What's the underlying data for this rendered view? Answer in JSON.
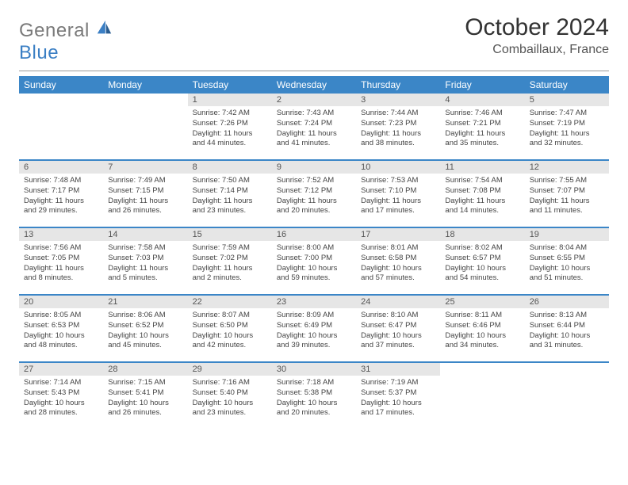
{
  "brand": {
    "part1": "General",
    "part2": "Blue"
  },
  "title": "October 2024",
  "subtitle": "Combaillaux, France",
  "colors": {
    "header_bg": "#3b86c7",
    "header_text": "#ffffff",
    "daynum_bg": "#e6e6e6",
    "row_border": "#3b86c7",
    "logo_gray": "#7a7a7a",
    "logo_blue": "#3b7fc4"
  },
  "dayHeaders": [
    "Sunday",
    "Monday",
    "Tuesday",
    "Wednesday",
    "Thursday",
    "Friday",
    "Saturday"
  ],
  "calendar": {
    "type": "table",
    "columns": 7,
    "startWeekday": 2,
    "days": [
      {
        "n": 1,
        "sr": "7:42 AM",
        "ss": "7:26 PM",
        "dl": "11 hours and 44 minutes."
      },
      {
        "n": 2,
        "sr": "7:43 AM",
        "ss": "7:24 PM",
        "dl": "11 hours and 41 minutes."
      },
      {
        "n": 3,
        "sr": "7:44 AM",
        "ss": "7:23 PM",
        "dl": "11 hours and 38 minutes."
      },
      {
        "n": 4,
        "sr": "7:46 AM",
        "ss": "7:21 PM",
        "dl": "11 hours and 35 minutes."
      },
      {
        "n": 5,
        "sr": "7:47 AM",
        "ss": "7:19 PM",
        "dl": "11 hours and 32 minutes."
      },
      {
        "n": 6,
        "sr": "7:48 AM",
        "ss": "7:17 PM",
        "dl": "11 hours and 29 minutes."
      },
      {
        "n": 7,
        "sr": "7:49 AM",
        "ss": "7:15 PM",
        "dl": "11 hours and 26 minutes."
      },
      {
        "n": 8,
        "sr": "7:50 AM",
        "ss": "7:14 PM",
        "dl": "11 hours and 23 minutes."
      },
      {
        "n": 9,
        "sr": "7:52 AM",
        "ss": "7:12 PM",
        "dl": "11 hours and 20 minutes."
      },
      {
        "n": 10,
        "sr": "7:53 AM",
        "ss": "7:10 PM",
        "dl": "11 hours and 17 minutes."
      },
      {
        "n": 11,
        "sr": "7:54 AM",
        "ss": "7:08 PM",
        "dl": "11 hours and 14 minutes."
      },
      {
        "n": 12,
        "sr": "7:55 AM",
        "ss": "7:07 PM",
        "dl": "11 hours and 11 minutes."
      },
      {
        "n": 13,
        "sr": "7:56 AM",
        "ss": "7:05 PM",
        "dl": "11 hours and 8 minutes."
      },
      {
        "n": 14,
        "sr": "7:58 AM",
        "ss": "7:03 PM",
        "dl": "11 hours and 5 minutes."
      },
      {
        "n": 15,
        "sr": "7:59 AM",
        "ss": "7:02 PM",
        "dl": "11 hours and 2 minutes."
      },
      {
        "n": 16,
        "sr": "8:00 AM",
        "ss": "7:00 PM",
        "dl": "10 hours and 59 minutes."
      },
      {
        "n": 17,
        "sr": "8:01 AM",
        "ss": "6:58 PM",
        "dl": "10 hours and 57 minutes."
      },
      {
        "n": 18,
        "sr": "8:02 AM",
        "ss": "6:57 PM",
        "dl": "10 hours and 54 minutes."
      },
      {
        "n": 19,
        "sr": "8:04 AM",
        "ss": "6:55 PM",
        "dl": "10 hours and 51 minutes."
      },
      {
        "n": 20,
        "sr": "8:05 AM",
        "ss": "6:53 PM",
        "dl": "10 hours and 48 minutes."
      },
      {
        "n": 21,
        "sr": "8:06 AM",
        "ss": "6:52 PM",
        "dl": "10 hours and 45 minutes."
      },
      {
        "n": 22,
        "sr": "8:07 AM",
        "ss": "6:50 PM",
        "dl": "10 hours and 42 minutes."
      },
      {
        "n": 23,
        "sr": "8:09 AM",
        "ss": "6:49 PM",
        "dl": "10 hours and 39 minutes."
      },
      {
        "n": 24,
        "sr": "8:10 AM",
        "ss": "6:47 PM",
        "dl": "10 hours and 37 minutes."
      },
      {
        "n": 25,
        "sr": "8:11 AM",
        "ss": "6:46 PM",
        "dl": "10 hours and 34 minutes."
      },
      {
        "n": 26,
        "sr": "8:13 AM",
        "ss": "6:44 PM",
        "dl": "10 hours and 31 minutes."
      },
      {
        "n": 27,
        "sr": "7:14 AM",
        "ss": "5:43 PM",
        "dl": "10 hours and 28 minutes."
      },
      {
        "n": 28,
        "sr": "7:15 AM",
        "ss": "5:41 PM",
        "dl": "10 hours and 26 minutes."
      },
      {
        "n": 29,
        "sr": "7:16 AM",
        "ss": "5:40 PM",
        "dl": "10 hours and 23 minutes."
      },
      {
        "n": 30,
        "sr": "7:18 AM",
        "ss": "5:38 PM",
        "dl": "10 hours and 20 minutes."
      },
      {
        "n": 31,
        "sr": "7:19 AM",
        "ss": "5:37 PM",
        "dl": "10 hours and 17 minutes."
      }
    ]
  },
  "labels": {
    "sunrise": "Sunrise:",
    "sunset": "Sunset:",
    "daylight": "Daylight:"
  }
}
